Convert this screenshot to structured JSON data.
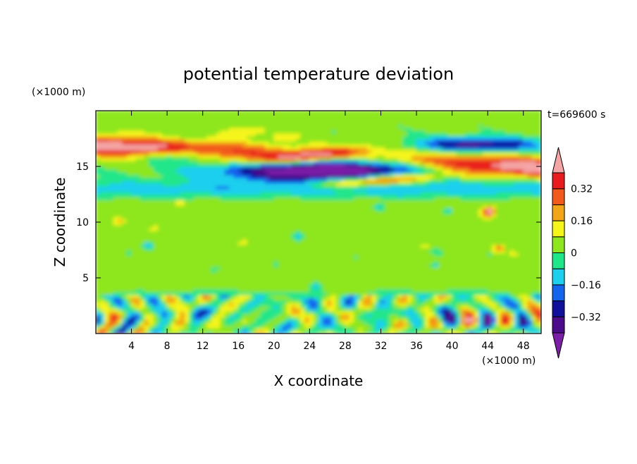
{
  "chart_data": {
    "type": "heatmap",
    "title": "potential temperature deviation",
    "xlabel": "X coordinate",
    "ylabel": "Z coordinate",
    "x_unit_label": "(×1000 m)",
    "y_unit_label": "(×1000 m)",
    "time_label": "t=669600 s",
    "xlim": [
      0,
      50
    ],
    "ylim": [
      0,
      20
    ],
    "x_ticks": [
      4,
      8,
      12,
      16,
      20,
      24,
      28,
      32,
      36,
      40,
      44,
      48
    ],
    "y_ticks": [
      5,
      10,
      15
    ],
    "colorbar": {
      "levels": [
        -0.4,
        -0.32,
        -0.24,
        -0.16,
        -0.08,
        0,
        0.08,
        0.16,
        0.24,
        0.32,
        0.4
      ],
      "tick_labels": [
        "0.32",
        "0.16",
        "0",
        "−0.16",
        "−0.32"
      ],
      "tick_values": [
        0.32,
        0.16,
        0,
        -0.16,
        -0.32
      ],
      "colors": [
        "#7a1fa6",
        "#4b0b8a",
        "#10109a",
        "#1464ee",
        "#1ecfee",
        "#20e68a",
        "#8ee61f",
        "#f5f51a",
        "#f2a516",
        "#f25a1c",
        "#e81c1c",
        "#f4a5a5"
      ]
    },
    "features": [
      {
        "name": "upper-positive-band",
        "value": 0.4,
        "z_range": [
          15,
          17
        ],
        "x_range": [
          0,
          50
        ]
      },
      {
        "name": "upper-negative-core",
        "value": -0.4,
        "z_range": [
          14,
          16
        ],
        "x_range": [
          14,
          36
        ]
      },
      {
        "name": "cold-cyan-layer",
        "value": -0.1,
        "z_range": [
          12.3,
          13.8
        ],
        "x_range": [
          0,
          50
        ]
      },
      {
        "name": "boundary-layer-convection",
        "value": 0,
        "z_range": [
          0,
          3.5
        ],
        "x_range": [
          0,
          50
        ]
      }
    ]
  }
}
